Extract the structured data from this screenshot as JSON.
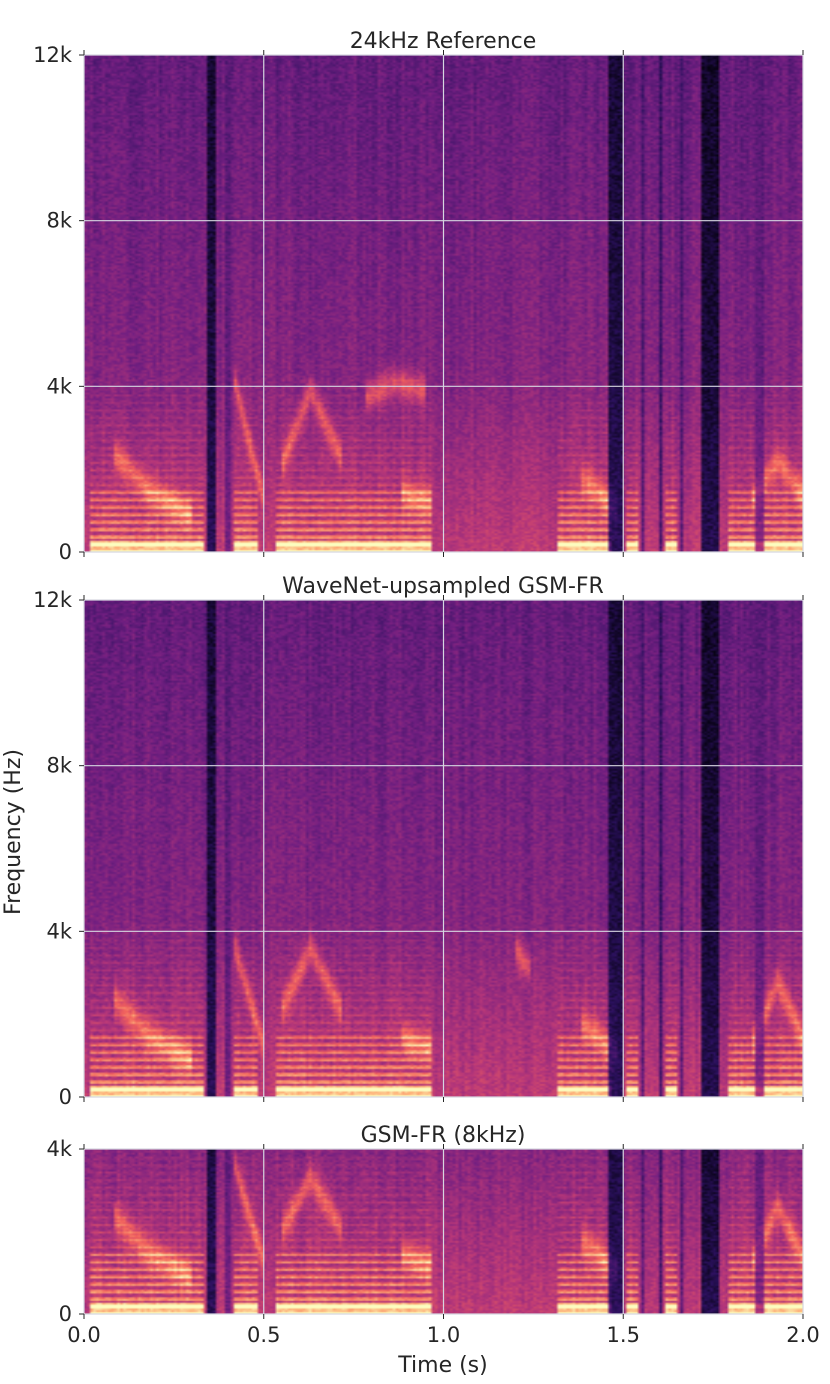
{
  "chart_data": [
    {
      "type": "heatmap",
      "title": "24kHz Reference",
      "xlabel": "",
      "ylabel": "",
      "xlim": [
        0.0,
        2.0
      ],
      "ylim": [
        0,
        12000
      ],
      "x_ticks": [
        0.0,
        0.5,
        1.0,
        1.5,
        2.0
      ],
      "y_ticks": [
        0,
        4000,
        8000,
        12000
      ],
      "y_tick_labels": [
        "0",
        "4k",
        "8k",
        "12k"
      ],
      "grid": true,
      "colormap": "magma",
      "formants": [
        {
          "t": [
            0.08,
            0.18,
            0.3
          ],
          "f": [
            2400,
            1500,
            900
          ]
        },
        {
          "t": [
            0.42,
            0.46,
            0.5
          ],
          "f": [
            4100,
            2600,
            1300
          ]
        },
        {
          "t": [
            0.55,
            0.63,
            0.72
          ],
          "f": [
            2100,
            3900,
            2200
          ]
        },
        {
          "t": [
            0.78,
            0.86,
            0.95
          ],
          "f": [
            3700,
            4100,
            3900
          ]
        },
        {
          "t": [
            0.88,
            0.92,
            0.97
          ],
          "f": [
            1500,
            1300,
            1200
          ]
        },
        {
          "t": [
            1.38,
            1.43,
            1.48
          ],
          "f": [
            1800,
            1500,
            1000
          ]
        },
        {
          "t": [
            1.86,
            1.93,
            2.0
          ],
          "f": [
            1300,
            2200,
            1400
          ]
        }
      ]
    },
    {
      "type": "heatmap",
      "title": "WaveNet-upsampled GSM-FR",
      "xlabel": "",
      "ylabel": "Frequency (Hz)",
      "xlim": [
        0.0,
        2.0
      ],
      "ylim": [
        0,
        12000
      ],
      "x_ticks": [
        0.0,
        0.5,
        1.0,
        1.5,
        2.0
      ],
      "y_ticks": [
        0,
        4000,
        8000,
        12000
      ],
      "y_tick_labels": [
        "0",
        "4k",
        "8k",
        "12k"
      ],
      "grid": true,
      "colormap": "magma",
      "formants": [
        {
          "t": [
            0.08,
            0.18,
            0.3
          ],
          "f": [
            2400,
            1500,
            900
          ]
        },
        {
          "t": [
            0.42,
            0.46,
            0.5
          ],
          "f": [
            3600,
            2400,
            1200
          ]
        },
        {
          "t": [
            0.55,
            0.63,
            0.72
          ],
          "f": [
            2100,
            3600,
            2000
          ]
        },
        {
          "t": [
            0.88,
            0.92,
            0.97
          ],
          "f": [
            1500,
            1300,
            1200
          ]
        },
        {
          "t": [
            1.2,
            1.22,
            1.24
          ],
          "f": [
            3600,
            3300,
            3100
          ]
        },
        {
          "t": [
            1.38,
            1.43,
            1.48
          ],
          "f": [
            1800,
            1500,
            1000
          ]
        },
        {
          "t": [
            1.86,
            1.93,
            2.0
          ],
          "f": [
            1300,
            2800,
            1400
          ]
        }
      ]
    },
    {
      "type": "heatmap",
      "title": "GSM-FR (8kHz)",
      "xlabel": "Time (s)",
      "ylabel": "",
      "xlim": [
        0.0,
        2.0
      ],
      "ylim": [
        0,
        4000
      ],
      "x_ticks": [
        0.0,
        0.5,
        1.0,
        1.5,
        2.0
      ],
      "x_tick_labels": [
        "0.0",
        "0.5",
        "1.0",
        "1.5",
        "2.0"
      ],
      "y_ticks": [
        0,
        4000
      ],
      "y_tick_labels": [
        "0",
        "4k"
      ],
      "grid": true,
      "colormap": "magma",
      "formants": [
        {
          "t": [
            0.08,
            0.18,
            0.3
          ],
          "f": [
            2400,
            1500,
            900
          ]
        },
        {
          "t": [
            0.42,
            0.46,
            0.5
          ],
          "f": [
            3600,
            2400,
            1300
          ]
        },
        {
          "t": [
            0.55,
            0.63,
            0.72
          ],
          "f": [
            2000,
            3300,
            2000
          ]
        },
        {
          "t": [
            0.88,
            0.92,
            0.97
          ],
          "f": [
            1500,
            1300,
            1200
          ]
        },
        {
          "t": [
            1.38,
            1.43,
            1.48
          ],
          "f": [
            1800,
            1500,
            1000
          ]
        },
        {
          "t": [
            1.86,
            1.93,
            2.0
          ],
          "f": [
            1300,
            2600,
            1400
          ]
        }
      ]
    }
  ],
  "energy": {
    "silence_gaps": [
      {
        "t": [
          0.34,
          0.37
        ],
        "level": 0.12
      },
      {
        "t": [
          0.39,
          0.41
        ],
        "level": 0.3
      },
      {
        "t": [
          1.46,
          1.5
        ],
        "level": 0.12
      },
      {
        "t": [
          1.55,
          1.56
        ],
        "level": 0.25
      },
      {
        "t": [
          1.6,
          1.61
        ],
        "level": 0.2
      },
      {
        "t": [
          1.66,
          1.67
        ],
        "level": 0.25
      },
      {
        "t": [
          1.72,
          1.77
        ],
        "level": 0.1
      },
      {
        "t": [
          1.87,
          1.89
        ],
        "level": 0.3
      }
    ],
    "voiced_segments": [
      [
        0.02,
        0.33
      ],
      [
        0.42,
        0.48
      ],
      [
        0.53,
        0.97
      ],
      [
        1.32,
        1.47
      ],
      [
        1.51,
        1.54
      ],
      [
        1.62,
        1.65
      ],
      [
        1.79,
        2.0
      ]
    ],
    "fundamental_hz": 180,
    "colormap_stops": [
      "#000004",
      "#2c115f",
      "#721f81",
      "#b73779",
      "#f1605d",
      "#feb078",
      "#fcfdbf"
    ]
  }
}
